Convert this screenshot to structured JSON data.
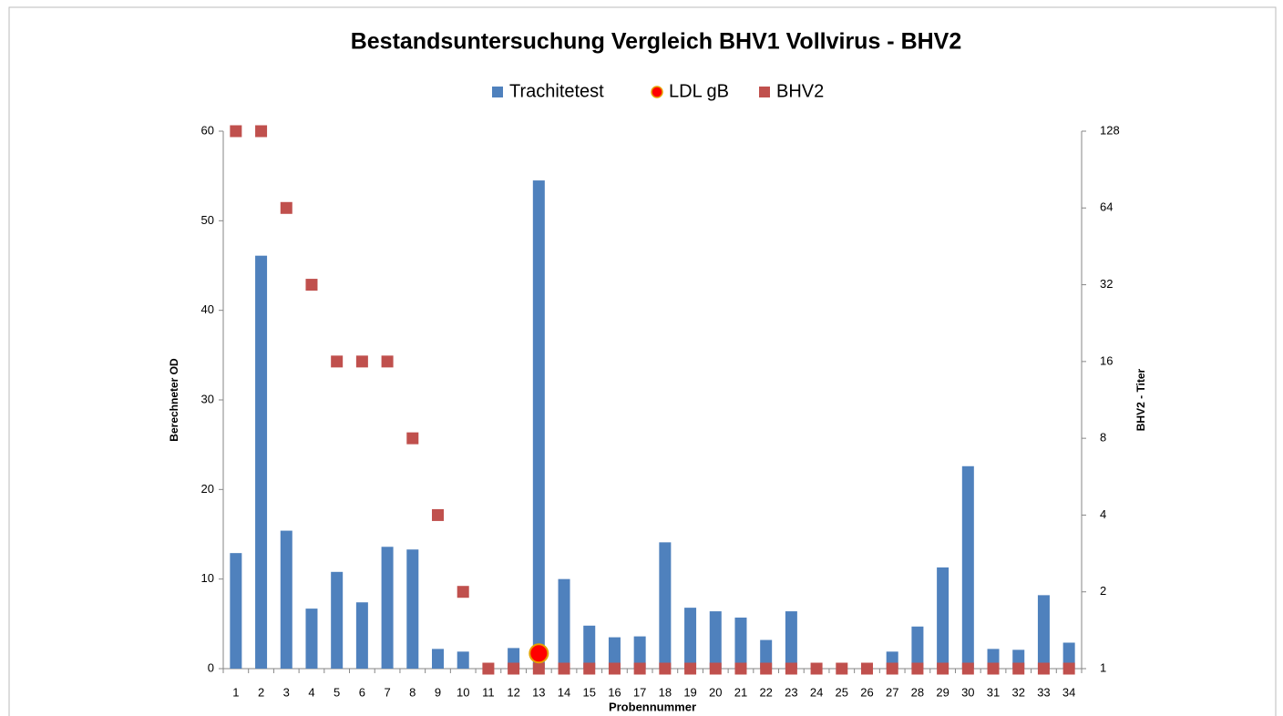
{
  "chart_data": {
    "type": "bar",
    "title": "Bestandsuntersuchung  Vergleich BHV1 Vollvirus - BHV2",
    "ylabel": "Berechneter OD",
    "y2label": "BHV2 - Titer",
    "xlabel": "Probennummer",
    "categories": [
      "1",
      "2",
      "3",
      "4",
      "5",
      "6",
      "7",
      "8",
      "9",
      "10",
      "11",
      "12",
      "13",
      "14",
      "15",
      "16",
      "17",
      "18",
      "19",
      "20",
      "21",
      "22",
      "23",
      "24",
      "25",
      "26",
      "27",
      "28",
      "29",
      "30",
      "31",
      "32",
      "33",
      "34"
    ],
    "series": [
      {
        "name": "Trachitetest",
        "type": "bar",
        "color": "#4f81bd",
        "values": [
          12.9,
          46.1,
          15.4,
          6.7,
          10.8,
          7.4,
          13.6,
          13.3,
          2.2,
          1.9,
          0,
          2.3,
          54.5,
          10.0,
          4.8,
          3.5,
          3.6,
          14.1,
          6.8,
          6.4,
          5.7,
          3.2,
          6.4,
          0,
          0,
          0,
          1.9,
          4.7,
          11.3,
          22.6,
          2.2,
          2.1,
          8.2,
          2.9
        ]
      },
      {
        "name": "LDL gB",
        "type": "circle",
        "color": "#ff0000",
        "values": [
          null,
          null,
          null,
          null,
          null,
          null,
          null,
          null,
          null,
          null,
          null,
          null,
          1.7,
          null,
          null,
          null,
          null,
          null,
          null,
          null,
          null,
          null,
          null,
          null,
          null,
          null,
          null,
          null,
          null,
          null,
          null,
          null,
          null,
          null
        ]
      },
      {
        "name": "BHV2",
        "type": "square",
        "color": "#c0504d",
        "axis": "y2",
        "values": [
          128,
          128,
          64,
          32,
          16,
          16,
          16,
          8,
          4,
          2,
          1,
          1,
          1,
          1,
          1,
          1,
          1,
          1,
          1,
          1,
          1,
          1,
          1,
          1,
          1,
          1,
          1,
          1,
          1,
          1,
          1,
          1,
          1,
          1
        ]
      }
    ],
    "ylim": [
      0,
      60
    ],
    "yticks": [
      0,
      10,
      20,
      30,
      40,
      50,
      60
    ],
    "y2lim": [
      1,
      128
    ],
    "y2ticks": [
      1,
      2,
      4,
      8,
      16,
      32,
      64,
      128
    ],
    "y2scale": "log",
    "legend": "top"
  }
}
